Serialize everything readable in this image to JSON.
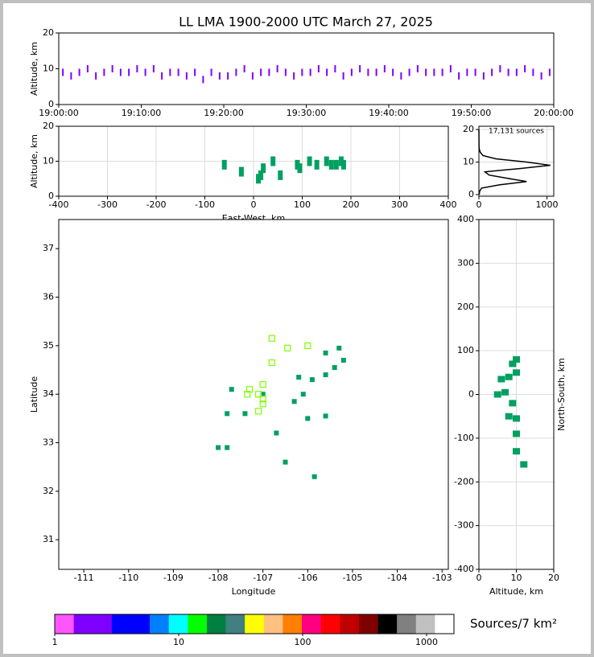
{
  "title": "LL LMA 1900-2000 UTC March 27, 2025",
  "chart_data": [
    {
      "type": "scatter",
      "ylabel": "Altitude, km",
      "xlim": [
        0,
        60
      ],
      "ylim": [
        0,
        20
      ],
      "xticks": [
        {
          "value": 0,
          "label": "19:00:00"
        },
        {
          "value": 10,
          "label": "19:10:00"
        },
        {
          "value": 20,
          "label": "19:20:00"
        },
        {
          "value": 30,
          "label": "19:30:00"
        },
        {
          "value": 40,
          "label": "19:40:00"
        },
        {
          "value": 50,
          "label": "19:50:00"
        },
        {
          "value": 60,
          "label": "20:00:00"
        }
      ],
      "yticks": [
        0,
        10,
        20
      ],
      "grid": false,
      "series": [
        {
          "color": "#8000ff",
          "x": [
            0.5,
            1.5,
            2.5,
            3.5,
            4.5,
            5.5,
            6.5,
            7.5,
            8.5,
            9.5,
            10.5,
            11.5,
            12.5,
            13.5,
            14.5,
            15.5,
            16.5,
            17.5,
            18.5,
            19.5,
            20.5,
            21.5,
            22.5,
            23.5,
            24.5,
            25.5,
            26.5,
            27.5,
            28.5,
            29.5,
            30.5,
            31.5,
            32.5,
            33.5,
            34.5,
            35.5,
            36.5,
            37.5,
            38.5,
            39.5,
            40.5,
            41.5,
            42.5,
            43.5,
            44.5,
            45.5,
            46.5,
            47.5,
            48.5,
            49.5,
            50.5,
            51.5,
            52.5,
            53.5,
            54.5,
            55.5,
            56.5,
            57.5,
            58.5,
            59.5
          ],
          "y": [
            9,
            8,
            9,
            10,
            8,
            9,
            10,
            9,
            9,
            10,
            9,
            10,
            8,
            9,
            9,
            8,
            9,
            7,
            9,
            8,
            8,
            9,
            10,
            8,
            9,
            9,
            10,
            9,
            8,
            9,
            9,
            10,
            9,
            10,
            8,
            9,
            10,
            9,
            9,
            10,
            9,
            8,
            9,
            10,
            9,
            9,
            9,
            10,
            8,
            9,
            9,
            8,
            9,
            10,
            9,
            9,
            10,
            9,
            8,
            9
          ]
        }
      ]
    },
    {
      "type": "scatter",
      "xlabel": "East-West, km",
      "ylabel": "Altitude, km",
      "xlim": [
        -400,
        400
      ],
      "ylim": [
        0,
        20
      ],
      "xticks": [
        -400,
        -300,
        -200,
        -100,
        0,
        100,
        200,
        300,
        400
      ],
      "yticks": [
        0,
        10,
        20
      ],
      "grid": true,
      "series": [
        {
          "color": "#00a060",
          "x": [
            -60,
            -25,
            10,
            15,
            20,
            40,
            55,
            90,
            95,
            115,
            130,
            150,
            160,
            170,
            180,
            185
          ],
          "y": [
            9,
            7,
            5,
            6,
            8,
            10,
            6,
            9,
            8,
            10,
            9,
            10,
            9,
            9,
            10,
            9
          ]
        }
      ]
    },
    {
      "type": "line",
      "annotation": "17,131 sources",
      "xlim": [
        0,
        1100
      ],
      "ylim": [
        -0.5,
        21
      ],
      "xticks": [
        0,
        1000
      ],
      "yticks": [
        0,
        10,
        20
      ],
      "grid": true,
      "series": [
        {
          "color": "#000000",
          "x": [
            5,
            10,
            40,
            300,
            700,
            420,
            150,
            90,
            600,
            1050,
            700,
            250,
            60,
            20,
            5,
            2,
            0
          ],
          "y": [
            0,
            1,
            2,
            3,
            4,
            5,
            6,
            7,
            8,
            9,
            10,
            11,
            12,
            13,
            14,
            15,
            20
          ]
        }
      ]
    },
    {
      "type": "scatter",
      "xlabel": "Longitude",
      "ylabel": "Latitude",
      "xlim": [
        -111.56,
        -102.86
      ],
      "ylim": [
        30.39,
        37.6
      ],
      "xticks": [
        -111,
        -110,
        -109,
        -108,
        -107,
        -106,
        -105,
        -104,
        -103
      ],
      "yticks": [
        31,
        32,
        33,
        34,
        35,
        36,
        37
      ],
      "grid": false,
      "series": [
        {
          "color": "#00a060",
          "marker": "square",
          "x": [
            -105.2,
            -105.4,
            -105.6,
            -105.9,
            -106.1,
            -106.3,
            -106.2,
            -107.0,
            -107.7,
            -107.8,
            -107.4,
            -106.0,
            -105.6,
            -106.7,
            -107.8,
            -108.0,
            -106.5,
            -105.85,
            -105.6,
            -105.3
          ],
          "y": [
            34.7,
            34.55,
            34.4,
            34.3,
            34.0,
            33.85,
            34.35,
            34.0,
            34.1,
            33.6,
            33.6,
            33.5,
            33.55,
            33.2,
            32.9,
            32.9,
            32.6,
            32.3,
            34.85,
            34.95
          ]
        },
        {
          "color": "#7fff00",
          "marker": "square-open",
          "x": [
            -106.8,
            -106.45,
            -106.0,
            -106.8,
            -107.0,
            -107.3,
            -107.35,
            -107.1,
            -107.0,
            -107.0,
            -107.1
          ],
          "y": [
            35.15,
            34.95,
            35.0,
            34.65,
            34.2,
            34.1,
            34.0,
            34.0,
            33.9,
            33.8,
            33.65
          ]
        }
      ]
    },
    {
      "type": "scatter",
      "xlabel": "Altitude, km",
      "ylabel": "North-South, km",
      "xlim": [
        0,
        20
      ],
      "ylim": [
        -400,
        400
      ],
      "xticks": [
        0,
        10,
        20
      ],
      "yticks": [
        -400,
        -300,
        -200,
        -100,
        0,
        100,
        200,
        300,
        400
      ],
      "grid": true,
      "series": [
        {
          "color": "#00a060",
          "x": [
            10,
            9,
            10,
            8,
            6,
            7,
            5,
            9,
            8,
            10,
            10,
            10,
            12
          ],
          "y": [
            80,
            70,
            50,
            40,
            35,
            5,
            0,
            -20,
            -50,
            -55,
            -90,
            -130,
            -160
          ]
        }
      ]
    },
    {
      "type": "colorbar",
      "label": "Sources/7 km²",
      "log": true,
      "xlim": [
        1,
        1662
      ],
      "xticks": [
        1,
        10,
        100,
        1000
      ],
      "colors": [
        "#ff55ff",
        "#8000ff",
        "#8000ff",
        "#0000ff",
        "#0000ff",
        "#0080ff",
        "#00ffff",
        "#00ff00",
        "#008040",
        "#408080",
        "#ffff00",
        "#ffc080",
        "#ff8000",
        "#ff0080",
        "#ff0000",
        "#c00000",
        "#800000",
        "#000000",
        "#808080",
        "#c0c0c0",
        "#ffffff"
      ]
    }
  ]
}
